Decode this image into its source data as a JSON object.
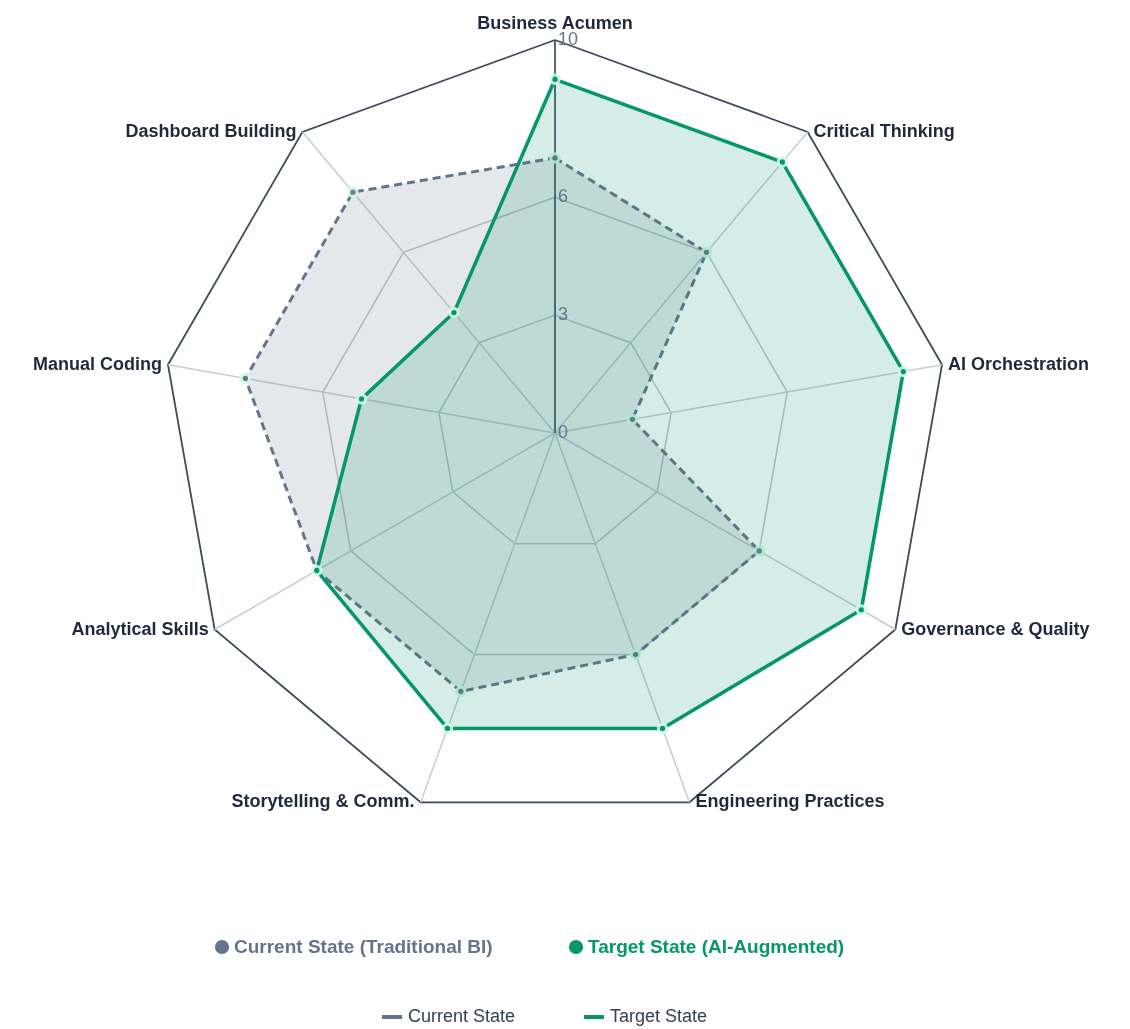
{
  "chart_data": {
    "type": "radar",
    "categories": [
      "Business Acumen",
      "Critical Thinking",
      "AI Orchestration",
      "Governance & Quality",
      "Engineering Practices",
      "Storytelling & Comm.",
      "Analytical Skills",
      "Manual Coding",
      "Dashboard Building"
    ],
    "series": [
      {
        "name": "Current State",
        "color": "#64748b",
        "line_style": "dashed",
        "values": [
          7,
          6,
          2,
          6,
          6,
          7,
          7,
          8,
          8
        ]
      },
      {
        "name": "Target State",
        "color": "#059669",
        "line_style": "solid",
        "values": [
          9,
          9,
          9,
          9,
          8,
          8,
          7,
          5,
          4
        ]
      }
    ],
    "ylim": [
      0,
      10
    ],
    "yticks": [
      0,
      3,
      6,
      10
    ],
    "grid": true,
    "marker": "circle",
    "legend": "bottom",
    "annotations": [
      "Current State (Traditional BI)",
      "Target State (AI-Augmented)"
    ]
  }
}
